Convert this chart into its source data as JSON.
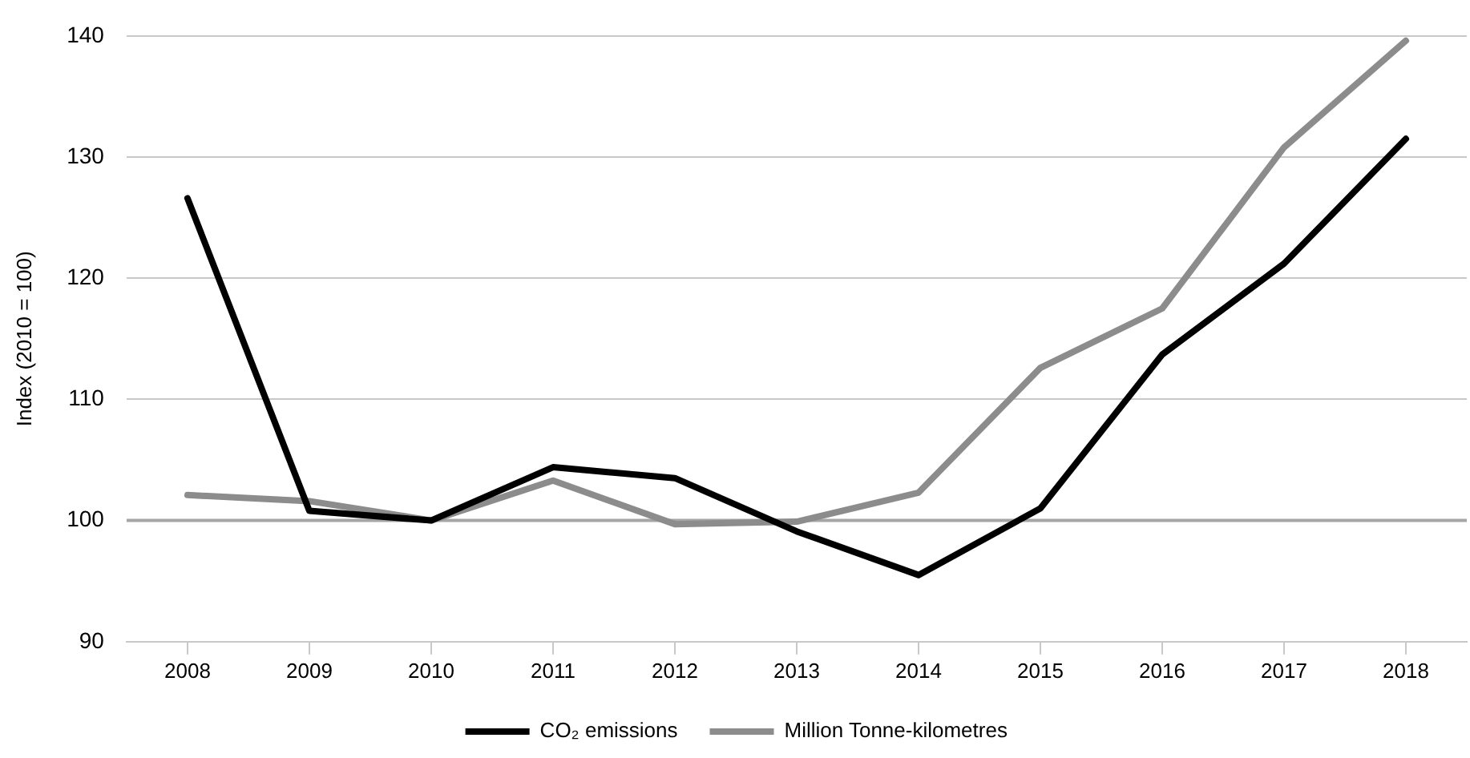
{
  "chart_data": {
    "type": "line",
    "ylabel": "Index (2010 = 100)",
    "categories": [
      "2008",
      "2009",
      "2010",
      "2011",
      "2012",
      "2013",
      "2014",
      "2015",
      "2016",
      "2017",
      "2018"
    ],
    "series": [
      {
        "name": "CO₂ emissions",
        "color": "#000000",
        "values": [
          126.6,
          100.8,
          100,
          104.4,
          103.5,
          99.1,
          95.5,
          101,
          113.7,
          121.2,
          131.5
        ]
      },
      {
        "name": "Million Tonne-kilometres",
        "color": "#8c8c8c",
        "values": [
          102.1,
          101.6,
          100,
          103.3,
          99.7,
          99.9,
          102.3,
          112.6,
          117.5,
          130.8,
          139.6
        ]
      }
    ],
    "ylim": [
      90,
      140
    ],
    "yticks": [
      90,
      100,
      110,
      120,
      130,
      140
    ],
    "grid": "y",
    "legend": "bottom",
    "marker": "none",
    "line_style": "solid",
    "ref_lines": [
      {
        "axis": "y",
        "value": 100,
        "color": "#a6a6a6"
      }
    ]
  }
}
